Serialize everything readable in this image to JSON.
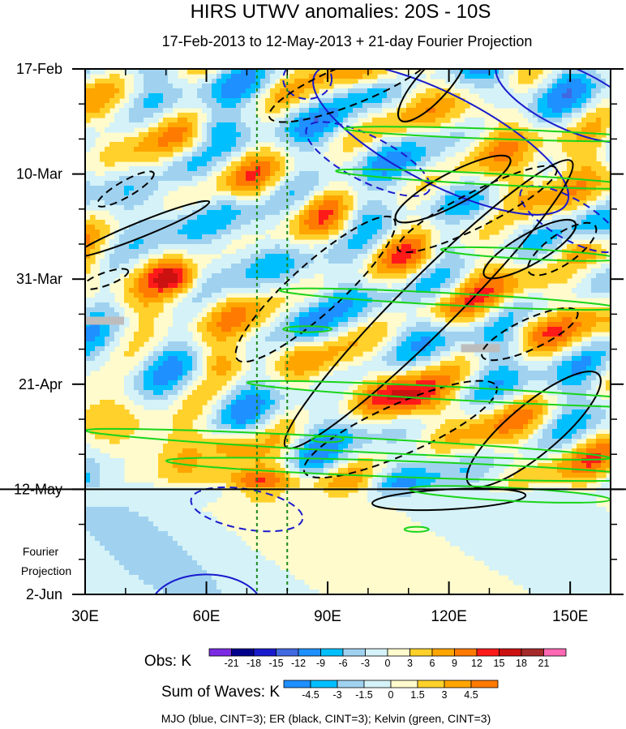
{
  "chart_data": {
    "type": "heatmap",
    "title": "HIRS UTWV anomalies: 20S - 10S",
    "subtitle": "17-Feb-2013 to 12-May-2013 + 21-day Fourier Projection",
    "x_axis": {
      "range": [
        30,
        160
      ],
      "ticks": [
        30,
        60,
        90,
        120,
        150
      ],
      "tick_labels": [
        "30E",
        "60E",
        "90E",
        "120E",
        "150E"
      ]
    },
    "y_axis": {
      "range_days": [
        0,
        105
      ],
      "ticks_days": [
        0,
        21,
        42,
        63,
        84,
        105
      ],
      "tick_labels": [
        "17-Feb",
        "10-Mar",
        "31-Mar",
        "21-Apr",
        "12-May",
        "2-Jun"
      ],
      "direction": "time increases downward"
    },
    "observation_end_day": 84,
    "projection_label": [
      "Fourier",
      "Projection"
    ],
    "reference_lines_lon": [
      72.5,
      80
    ],
    "obs_colorbar": {
      "label": "Obs: K",
      "levels": [
        "-21",
        "-18",
        "-15",
        "-12",
        "-9",
        "-6",
        "-3",
        "0",
        "3",
        "6",
        "9",
        "12",
        "15",
        "18",
        "21"
      ],
      "colors": [
        "#7b2be2",
        "#00008b",
        "#1a1acd",
        "#4169e1",
        "#1e90ff",
        "#00bfff",
        "#a0d2f0",
        "#d4f2f7",
        "#fffbcc",
        "#ffd12a",
        "#ffa500",
        "#ff7a00",
        "#ff1a1a",
        "#cc1111",
        "#a52a2a",
        "#ff69b4"
      ]
    },
    "waves_colorbar": {
      "label": "Sum of Waves: K",
      "levels": [
        "-4.5",
        "-3",
        "-1.5",
        "0",
        "1.5",
        "3",
        "4.5"
      ],
      "colors": [
        "#1e90ff",
        "#00bfff",
        "#a0d2f0",
        "#d4f2f7",
        "#fffbcc",
        "#ffd12a",
        "#ffa500",
        "#ff7a00"
      ]
    },
    "legend_text": "MJO (blue, CINT=3); ER (black, CINT=3); Kelvin (green, CINT=3)",
    "series": [
      {
        "name": "MJO",
        "color": "#1a1acd",
        "cint": 3
      },
      {
        "name": "ER",
        "color": "#000000",
        "cint": 3
      },
      {
        "name": "Kelvin",
        "color": "#19d419",
        "cint": 3
      }
    ]
  }
}
